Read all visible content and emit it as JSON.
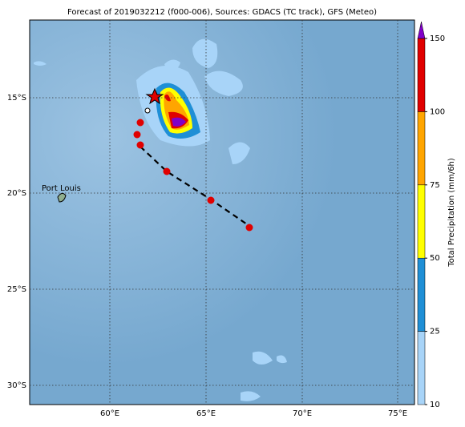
{
  "title": "Forecast of 2019032212 (f000-006), Sources: GDACS (TC track), GFS (Meteo)",
  "lat_labels": [
    "15°S",
    "20°S",
    "25°S",
    "30°S"
  ],
  "lon_labels": [
    "60°E",
    "65°E",
    "70°E",
    "75°E"
  ],
  "place_label": "Port Louis",
  "colorbar": {
    "label": "Total Precipitation (mm/6h)",
    "ticks": [
      10,
      25,
      50,
      75,
      100,
      150
    ],
    "colors": [
      "#a8d4f8",
      "#1f8fd6",
      "#ffff00",
      "#ffa500",
      "#e00000"
    ],
    "extend_color": "#8000c8"
  }
}
